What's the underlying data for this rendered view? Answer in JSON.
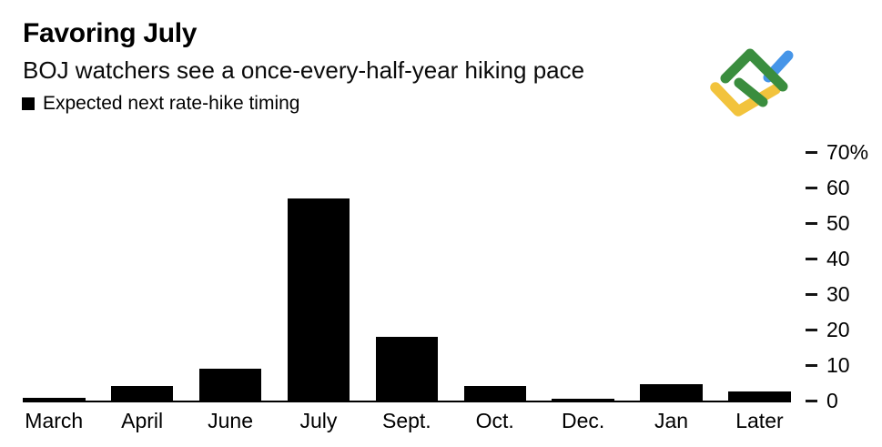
{
  "header": {
    "title": "Favoring July",
    "subtitle": "BOJ watchers see a once-every-half-year hiking pace"
  },
  "legend": {
    "label": "Expected next rate-hike timing",
    "swatch_color": "#000000"
  },
  "logo": {
    "name": "litefinance-logo",
    "colors": {
      "green": "#3a8d3e",
      "yellow": "#f2c33c",
      "blue": "#4695e8"
    }
  },
  "chart_data": {
    "type": "bar",
    "title": "Favoring July",
    "subtitle": "BOJ watchers see a once-every-half-year hiking pace",
    "series_label": "Expected next rate-hike timing",
    "categories": [
      "March",
      "April",
      "June",
      "July",
      "Sept.",
      "Oct.",
      "Dec.",
      "Jan",
      "Later"
    ],
    "values": [
      0.8,
      4,
      9,
      57,
      18,
      4,
      0.5,
      4.5,
      2.5
    ],
    "unit": "%",
    "bar_color": "#000000",
    "xlabel": "",
    "ylabel": "",
    "ylim": [
      0,
      70
    ],
    "ytick_step": 10,
    "ytick_labels": [
      "0",
      "10",
      "20",
      "30",
      "40",
      "50",
      "60",
      "70%"
    ],
    "grid": false,
    "yaxis_position": "right",
    "legend_position": "top-left"
  }
}
